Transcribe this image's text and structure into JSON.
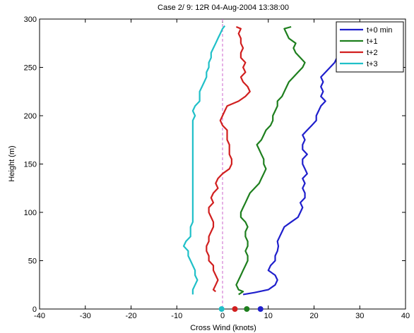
{
  "chart_data": {
    "type": "line",
    "title": "Case   2/  9: 12R 04-Aug-2004 13:38:00",
    "xlabel": "Cross Wind (knots)",
    "ylabel": "Height (m)",
    "xlim": [
      -40,
      40
    ],
    "ylim": [
      0,
      300
    ],
    "xticks": [
      -40,
      -30,
      -20,
      -10,
      0,
      10,
      20,
      30,
      40
    ],
    "yticks": [
      0,
      50,
      100,
      150,
      200,
      250,
      300
    ],
    "grid": false,
    "legend_position": "top-right",
    "zero_line": {
      "x": 0,
      "color": "#cc66cc",
      "style": "dashed"
    },
    "series": [
      {
        "name": "t+0 min",
        "color": "#1f1fcc",
        "marker_x": 8.3,
        "points": [
          [
            4.5,
            15
          ],
          [
            7,
            17
          ],
          [
            10,
            20
          ],
          [
            11.5,
            25
          ],
          [
            12,
            30
          ],
          [
            11.5,
            35
          ],
          [
            10,
            40
          ],
          [
            10.5,
            45
          ],
          [
            11.5,
            50
          ],
          [
            11.5,
            55
          ],
          [
            12,
            60
          ],
          [
            12.2,
            65
          ],
          [
            12,
            70
          ],
          [
            12.5,
            75
          ],
          [
            13,
            80
          ],
          [
            13.5,
            85
          ],
          [
            15,
            90
          ],
          [
            16.5,
            95
          ],
          [
            17,
            100
          ],
          [
            17.5,
            105
          ],
          [
            17,
            110
          ],
          [
            18,
            115
          ],
          [
            18,
            120
          ],
          [
            17.5,
            125
          ],
          [
            18,
            130
          ],
          [
            17.5,
            135
          ],
          [
            18.5,
            140
          ],
          [
            18,
            145
          ],
          [
            17.5,
            150
          ],
          [
            17.5,
            155
          ],
          [
            18.5,
            160
          ],
          [
            17.5,
            165
          ],
          [
            17.5,
            170
          ],
          [
            18,
            175
          ],
          [
            17.5,
            180
          ],
          [
            18.5,
            185
          ],
          [
            19.5,
            190
          ],
          [
            20.5,
            195
          ],
          [
            20.5,
            200
          ],
          [
            21,
            205
          ],
          [
            21.5,
            210
          ],
          [
            22.5,
            215
          ],
          [
            21.5,
            220
          ],
          [
            22,
            225
          ],
          [
            21.5,
            230
          ],
          [
            22,
            235
          ],
          [
            21.5,
            240
          ],
          [
            22.5,
            245
          ],
          [
            23.5,
            250
          ],
          [
            24.5,
            255
          ],
          [
            25,
            260
          ],
          [
            25.5,
            265
          ],
          [
            25,
            270
          ],
          [
            25.5,
            275
          ],
          [
            26,
            280
          ],
          [
            25.5,
            285
          ],
          [
            26,
            290
          ]
        ]
      },
      {
        "name": "t+1",
        "color": "#1e7f1e",
        "marker_x": 5.3,
        "points": [
          [
            3.5,
            15
          ],
          [
            4.5,
            18
          ],
          [
            3.5,
            20
          ],
          [
            3,
            25
          ],
          [
            3.5,
            30
          ],
          [
            4,
            35
          ],
          [
            4.5,
            40
          ],
          [
            5,
            45
          ],
          [
            5.5,
            50
          ],
          [
            5.5,
            55
          ],
          [
            5,
            60
          ],
          [
            5.5,
            65
          ],
          [
            5.5,
            70
          ],
          [
            5,
            75
          ],
          [
            5,
            80
          ],
          [
            5.5,
            85
          ],
          [
            5,
            90
          ],
          [
            4,
            95
          ],
          [
            4,
            100
          ],
          [
            4.5,
            105
          ],
          [
            5,
            110
          ],
          [
            5.5,
            115
          ],
          [
            6,
            120
          ],
          [
            7,
            125
          ],
          [
            8,
            130
          ],
          [
            8.5,
            135
          ],
          [
            9,
            140
          ],
          [
            9.5,
            145
          ],
          [
            9,
            150
          ],
          [
            9,
            155
          ],
          [
            8.5,
            160
          ],
          [
            8,
            165
          ],
          [
            7.5,
            170
          ],
          [
            8.5,
            175
          ],
          [
            9,
            180
          ],
          [
            9.5,
            185
          ],
          [
            10.5,
            190
          ],
          [
            11,
            195
          ],
          [
            11,
            200
          ],
          [
            11.5,
            205
          ],
          [
            12,
            210
          ],
          [
            12,
            215
          ],
          [
            13,
            220
          ],
          [
            13.5,
            225
          ],
          [
            14,
            230
          ],
          [
            14.5,
            235
          ],
          [
            15.5,
            240
          ],
          [
            16.5,
            245
          ],
          [
            17.5,
            250
          ],
          [
            18,
            255
          ],
          [
            17,
            260
          ],
          [
            16,
            265
          ],
          [
            15.5,
            270
          ],
          [
            16,
            275
          ],
          [
            14.5,
            280
          ],
          [
            14,
            285
          ],
          [
            13.5,
            290
          ],
          [
            15,
            292
          ]
        ]
      },
      {
        "name": "t+2",
        "color": "#d11f1f",
        "marker_x": 2.7,
        "points": [
          [
            -1.5,
            18
          ],
          [
            -2,
            20
          ],
          [
            -1.5,
            25
          ],
          [
            -1,
            30
          ],
          [
            -1.5,
            35
          ],
          [
            -2,
            40
          ],
          [
            -2,
            45
          ],
          [
            -3,
            50
          ],
          [
            -3,
            55
          ],
          [
            -3.5,
            60
          ],
          [
            -3.5,
            65
          ],
          [
            -3,
            70
          ],
          [
            -3,
            75
          ],
          [
            -2.5,
            80
          ],
          [
            -2,
            85
          ],
          [
            -2,
            90
          ],
          [
            -2.5,
            95
          ],
          [
            -3,
            100
          ],
          [
            -3,
            105
          ],
          [
            -2,
            110
          ],
          [
            -2.5,
            115
          ],
          [
            -2,
            120
          ],
          [
            -1,
            125
          ],
          [
            -1.5,
            130
          ],
          [
            -1,
            135
          ],
          [
            0,
            140
          ],
          [
            1.5,
            145
          ],
          [
            2,
            150
          ],
          [
            2,
            155
          ],
          [
            1.5,
            160
          ],
          [
            1.5,
            165
          ],
          [
            1.5,
            170
          ],
          [
            1,
            175
          ],
          [
            1,
            180
          ],
          [
            1,
            185
          ],
          [
            0,
            190
          ],
          [
            -0.5,
            195
          ],
          [
            0,
            200
          ],
          [
            0.5,
            205
          ],
          [
            1,
            210
          ],
          [
            3.5,
            215
          ],
          [
            5,
            220
          ],
          [
            6,
            225
          ],
          [
            5.5,
            230
          ],
          [
            4.5,
            235
          ],
          [
            4,
            240
          ],
          [
            5,
            245
          ],
          [
            4.5,
            250
          ],
          [
            5,
            255
          ],
          [
            4,
            260
          ],
          [
            4,
            265
          ],
          [
            4.5,
            270
          ],
          [
            4,
            275
          ],
          [
            4,
            280
          ],
          [
            3.5,
            285
          ],
          [
            4,
            290
          ],
          [
            3,
            292
          ]
        ]
      },
      {
        "name": "t+3",
        "color": "#20c0c8",
        "marker_x": -0.2,
        "points": [
          [
            -6.5,
            15
          ],
          [
            -6.5,
            20
          ],
          [
            -6,
            25
          ],
          [
            -5.5,
            30
          ],
          [
            -6,
            35
          ],
          [
            -6,
            40
          ],
          [
            -6.5,
            45
          ],
          [
            -7,
            50
          ],
          [
            -7.5,
            55
          ],
          [
            -7.5,
            60
          ],
          [
            -8.5,
            65
          ],
          [
            -8,
            70
          ],
          [
            -7,
            75
          ],
          [
            -7,
            80
          ],
          [
            -7,
            85
          ],
          [
            -6.5,
            90
          ],
          [
            -6.5,
            95
          ],
          [
            -6.5,
            100
          ],
          [
            -6.5,
            105
          ],
          [
            -6.5,
            110
          ],
          [
            -6.5,
            115
          ],
          [
            -6.5,
            120
          ],
          [
            -6.5,
            125
          ],
          [
            -6.5,
            130
          ],
          [
            -6.5,
            135
          ],
          [
            -6.5,
            140
          ],
          [
            -6.5,
            145
          ],
          [
            -6.5,
            150
          ],
          [
            -6.5,
            155
          ],
          [
            -6.5,
            160
          ],
          [
            -6.5,
            165
          ],
          [
            -6.5,
            170
          ],
          [
            -6.5,
            175
          ],
          [
            -6.5,
            180
          ],
          [
            -6.5,
            185
          ],
          [
            -6.5,
            190
          ],
          [
            -6.5,
            195
          ],
          [
            -6,
            200
          ],
          [
            -6.5,
            205
          ],
          [
            -6,
            210
          ],
          [
            -5,
            215
          ],
          [
            -5,
            220
          ],
          [
            -5,
            225
          ],
          [
            -4.5,
            230
          ],
          [
            -4,
            235
          ],
          [
            -3.5,
            240
          ],
          [
            -3.5,
            245
          ],
          [
            -3,
            250
          ],
          [
            -3,
            255
          ],
          [
            -2.5,
            260
          ],
          [
            -2.5,
            265
          ],
          [
            -2,
            270
          ],
          [
            -1.5,
            275
          ],
          [
            -1,
            280
          ],
          [
            -0.5,
            285
          ],
          [
            0,
            290
          ],
          [
            0.5,
            293
          ]
        ]
      }
    ]
  }
}
